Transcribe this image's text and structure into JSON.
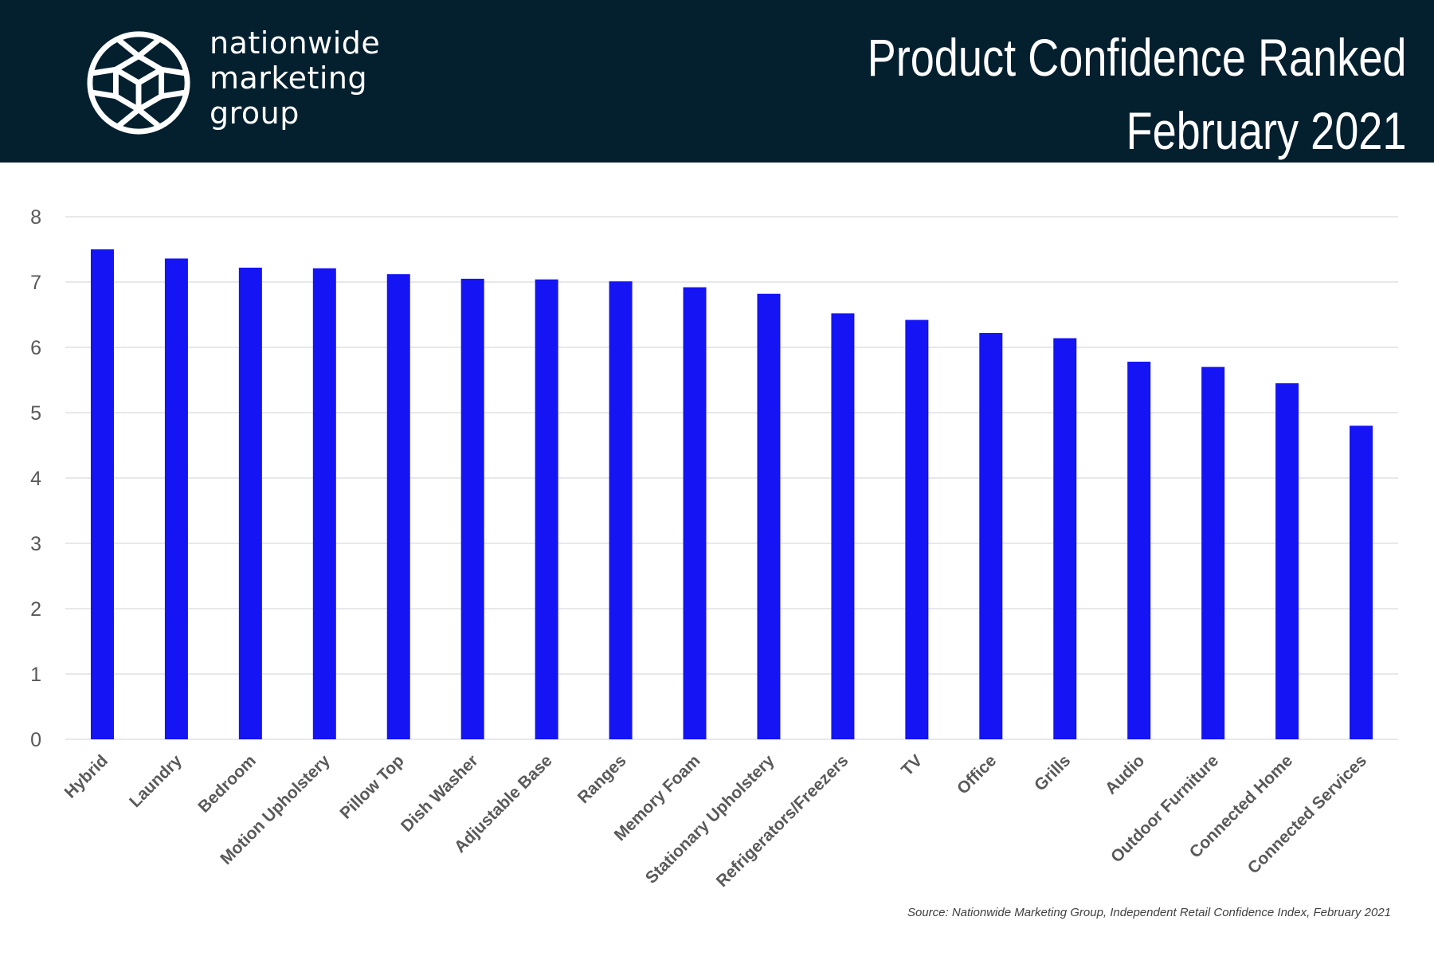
{
  "brand": {
    "line1": "nationwide",
    "line2": "marketing",
    "line3": "group"
  },
  "header": {
    "title_line1": "Product Confidence Ranked",
    "title_line2": "February 2021",
    "background_color": "#04202f"
  },
  "source_note": "Source: Nationwide Marketing Group, Independent Retail Confidence Index, February 2021",
  "chart_data": {
    "type": "bar",
    "title": "",
    "xlabel": "",
    "ylabel": "",
    "ylim": [
      0,
      8
    ],
    "yticks": [
      "0",
      "1",
      "2",
      "3",
      "4",
      "5",
      "6",
      "7",
      "8"
    ],
    "grid": true,
    "legend": "none",
    "bar_color": "#1414f5",
    "categories": [
      "Hybrid",
      "Laundry",
      "Bedroom",
      "Motion Upholstery",
      "Pillow Top",
      "Dish Washer",
      "Adjustable Base",
      "Ranges",
      "Memory Foam",
      "Stationary Upholstery",
      "Refrigerators/Freezers",
      "TV",
      "Office",
      "Grills",
      "Audio",
      "Outdoor Furniture",
      "Connected Home",
      "Connected Services"
    ],
    "values": [
      7.5,
      7.36,
      7.22,
      7.21,
      7.12,
      7.05,
      7.04,
      7.01,
      6.92,
      6.82,
      6.52,
      6.42,
      6.22,
      6.14,
      5.78,
      5.7,
      5.45,
      4.8
    ]
  }
}
